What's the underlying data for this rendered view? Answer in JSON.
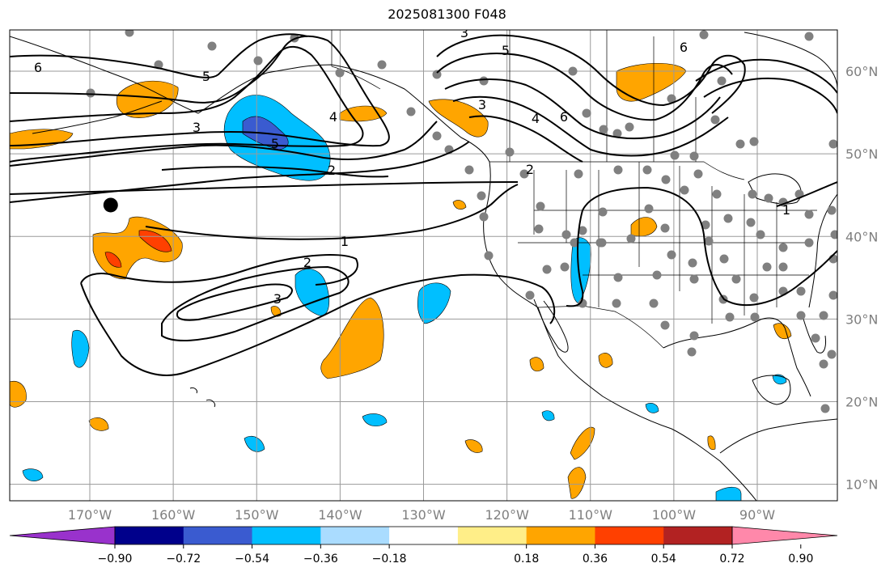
{
  "title": "2025081300 F048",
  "map": {
    "lon_labels": [
      {
        "lon": -170,
        "label": "170°W"
      },
      {
        "lon": -160,
        "label": "160°W"
      },
      {
        "lon": -150,
        "label": "150°W"
      },
      {
        "lon": -140,
        "label": "140°W"
      },
      {
        "lon": -130,
        "label": "130°W"
      },
      {
        "lon": -120,
        "label": "120°W"
      },
      {
        "lon": -110,
        "label": "110°W"
      },
      {
        "lon": -100,
        "label": "100°W"
      },
      {
        "lon": -90,
        "label": "90°W"
      }
    ],
    "lat_labels": [
      {
        "lat": 60,
        "label": "60°N"
      },
      {
        "lat": 50,
        "label": "50°N"
      },
      {
        "lat": 40,
        "label": "40°N"
      },
      {
        "lat": 30,
        "label": "30°N"
      },
      {
        "lat": 20,
        "label": "20°N"
      },
      {
        "lat": 10,
        "label": "10°N"
      }
    ],
    "contour_labels": [
      "6",
      "5",
      "3",
      "5",
      "6",
      "4",
      "6",
      "3",
      "4",
      "5",
      "3",
      "2",
      "2",
      "1",
      "2",
      "3",
      "1"
    ],
    "marker": {
      "lon": -167.5,
      "lat": 43.8
    }
  },
  "colorbar": {
    "ticks": [
      "−0.90",
      "−0.72",
      "−0.54",
      "−0.36",
      "−0.18",
      "0.18",
      "0.36",
      "0.54",
      "0.72",
      "0.90"
    ],
    "colors": [
      "#9932cc",
      "#00008b",
      "#3a5bd0",
      "#00bfff",
      "#aadcff",
      "#ffffff",
      "#ffee88",
      "#ffa500",
      "#ff4000",
      "#b22222",
      "#ff88aa"
    ]
  },
  "colors": {
    "land_border": "#000000",
    "grid": "#9a9a9a",
    "station": "#808080"
  }
}
